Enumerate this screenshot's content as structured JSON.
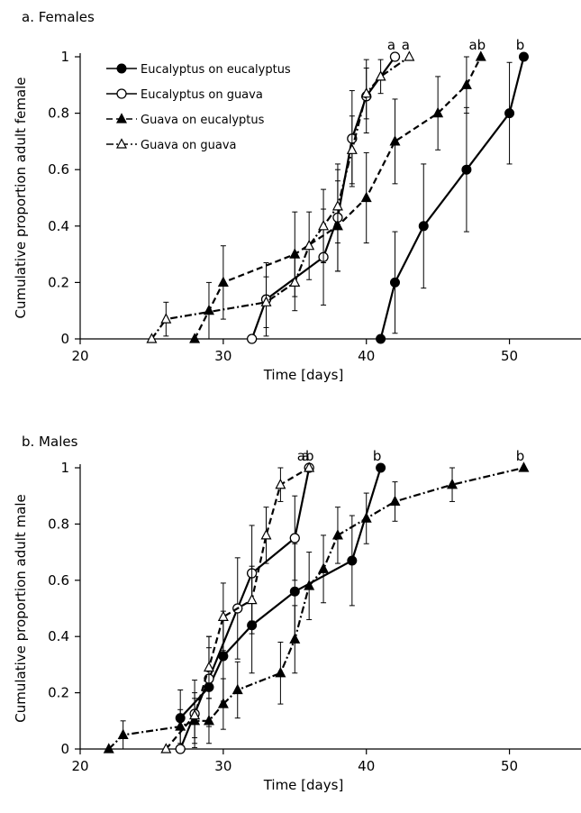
{
  "chart_data": [
    {
      "type": "line",
      "title": "a. Females",
      "xlabel": "Time [days]",
      "ylabel": "Cumulative proportion adult female",
      "xlim": [
        20,
        55
      ],
      "ylim": [
        0,
        1
      ],
      "xticks": [
        20,
        30,
        40,
        50
      ],
      "yticks": [
        0,
        0.2,
        0.4,
        0.6,
        0.8,
        1
      ],
      "xtick_labels": [
        "20",
        "30",
        "40",
        "50"
      ],
      "ytick_labels": [
        "0",
        "0.2",
        "0.4",
        "0.6",
        "0.8",
        "1"
      ],
      "grid": false,
      "legend_position": "top-left",
      "series": [
        {
          "name": "Eucalyptus on eucalyptus",
          "marker": "circle-filled",
          "line": "solid",
          "x": [
            41,
            42,
            44,
            47,
            50,
            51
          ],
          "y": [
            0,
            0.2,
            0.4,
            0.6,
            0.8,
            1
          ],
          "err": [
            0,
            0.18,
            0.22,
            0.22,
            0.18,
            0
          ],
          "group": "b"
        },
        {
          "name": "Eucalyptus on guava",
          "marker": "circle-open",
          "line": "solid",
          "x": [
            32,
            33,
            37,
            38,
            39,
            40,
            42
          ],
          "y": [
            0,
            0.14,
            0.29,
            0.43,
            0.71,
            0.86,
            1
          ],
          "err": [
            0,
            0.13,
            0.17,
            0.19,
            0.17,
            0.13,
            0
          ],
          "group": "a"
        },
        {
          "name": "Guava on eucalyptus",
          "marker": "triangle-filled",
          "line": "dashed",
          "x": [
            28,
            29,
            30,
            35,
            38,
            40,
            42,
            45,
            47,
            48
          ],
          "y": [
            0,
            0.1,
            0.2,
            0.3,
            0.4,
            0.5,
            0.7,
            0.8,
            0.9,
            1
          ],
          "err": [
            0,
            0.1,
            0.13,
            0.15,
            0.16,
            0.16,
            0.15,
            0.13,
            0.1,
            0
          ],
          "group": "ab"
        },
        {
          "name": "Guava on guava",
          "marker": "triangle-open",
          "line": "dash-dot",
          "x": [
            25,
            26,
            33,
            35,
            36,
            37,
            38,
            39,
            40,
            41,
            43
          ],
          "y": [
            0,
            0.07,
            0.13,
            0.2,
            0.33,
            0.4,
            0.47,
            0.67,
            0.87,
            0.93,
            1
          ],
          "err": [
            0,
            0.06,
            0.09,
            0.1,
            0.12,
            0.13,
            0.13,
            0.12,
            0.09,
            0.06,
            0
          ],
          "group": "a"
        }
      ]
    },
    {
      "type": "line",
      "title": "b. Males",
      "xlabel": "Time [days]",
      "ylabel": "Cumulative proportion adult male",
      "xlim": [
        20,
        55
      ],
      "ylim": [
        0,
        1
      ],
      "xticks": [
        20,
        30,
        40,
        50
      ],
      "yticks": [
        0,
        0.2,
        0.4,
        0.6,
        0.8,
        1
      ],
      "xtick_labels": [
        "20",
        "30",
        "40",
        "50"
      ],
      "ytick_labels": [
        "0",
        "0.2",
        "0.4",
        "0.6",
        "0.8",
        "1"
      ],
      "grid": false,
      "series": [
        {
          "name": "Eucalyptus on eucalyptus",
          "marker": "circle-filled",
          "line": "solid",
          "x": [
            27,
            29,
            30,
            32,
            35,
            39,
            41
          ],
          "y": [
            0.11,
            0.22,
            0.33,
            0.44,
            0.56,
            0.67,
            1
          ],
          "err": [
            0.1,
            0.14,
            0.16,
            0.17,
            0.17,
            0.16,
            0
          ],
          "group": "b"
        },
        {
          "name": "Eucalyptus on guava",
          "marker": "circle-open",
          "line": "solid",
          "x": [
            27,
            28,
            29,
            31,
            32,
            35,
            36
          ],
          "y": [
            0,
            0.125,
            0.25,
            0.5,
            0.625,
            0.75,
            1
          ],
          "err": [
            0,
            0.12,
            0.15,
            0.18,
            0.17,
            0.15,
            0
          ],
          "group": "ab"
        },
        {
          "name": "Guava on eucalyptus",
          "marker": "triangle-filled",
          "line": "dash-dot",
          "x": [
            22,
            23,
            27,
            28,
            29,
            30,
            31,
            34,
            35,
            36,
            37,
            38,
            40,
            42,
            46,
            51
          ],
          "y": [
            0,
            0.05,
            0.08,
            0.1,
            0.1,
            0.16,
            0.21,
            0.27,
            0.39,
            0.58,
            0.64,
            0.76,
            0.82,
            0.88,
            0.94,
            1
          ],
          "err": [
            0,
            0.05,
            0.06,
            0.08,
            0.08,
            0.09,
            0.1,
            0.11,
            0.12,
            0.12,
            0.12,
            0.1,
            0.09,
            0.07,
            0.06,
            0
          ],
          "group": "b"
        },
        {
          "name": "Guava on guava",
          "marker": "triangle-open",
          "line": "dashed",
          "x": [
            26,
            28,
            29,
            30,
            32,
            33,
            34,
            36
          ],
          "y": [
            0,
            0.12,
            0.29,
            0.47,
            0.53,
            0.76,
            0.94,
            1
          ],
          "err": [
            0,
            0.08,
            0.11,
            0.12,
            0.12,
            0.1,
            0.06,
            0
          ],
          "group": "a"
        }
      ]
    }
  ]
}
